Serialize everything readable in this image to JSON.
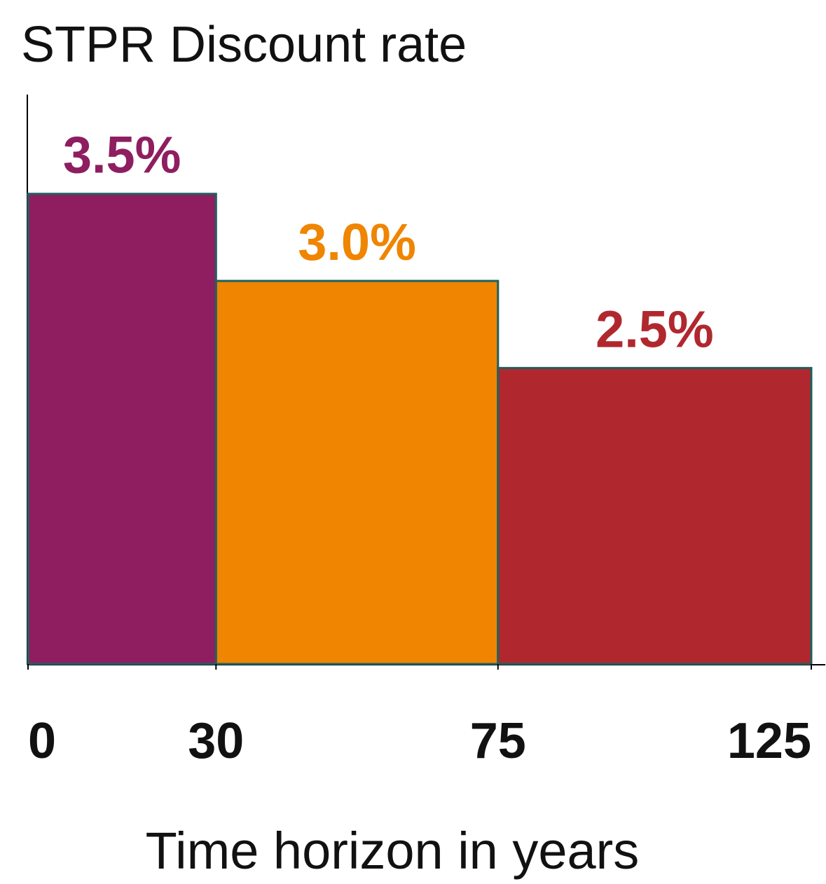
{
  "chart_data": {
    "type": "histogram",
    "title": "STPR Discount rate",
    "xlabel": "Time horizon in years",
    "bins": [
      0,
      30,
      75,
      125
    ],
    "values": [
      3.5,
      3.0,
      2.5
    ],
    "value_labels": [
      "3.5%",
      "3.0%",
      "2.5%"
    ],
    "colors": [
      "#8e1e5f",
      "#ef8500",
      "#b0282e"
    ],
    "xlim": [
      0,
      125
    ],
    "xticks": [
      0,
      30,
      75,
      125
    ],
    "ylim": [
      0.8,
      4.05
    ]
  }
}
